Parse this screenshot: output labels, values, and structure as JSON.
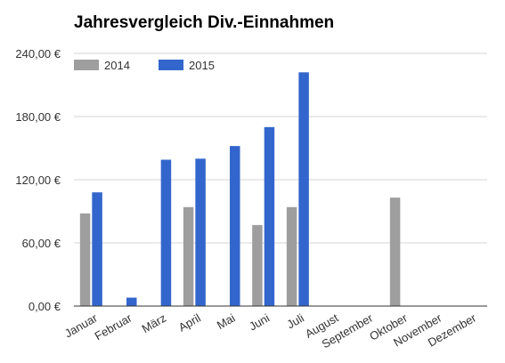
{
  "chart_data": {
    "type": "bar",
    "title": "Jahresvergleich Div.-Einnahmen",
    "xlabel": "",
    "ylabel": "",
    "ylim": [
      0,
      240
    ],
    "yticks": [
      0,
      60,
      120,
      180,
      240
    ],
    "ytick_labels": [
      "0,00 €",
      "60,00 €",
      "120,00 €",
      "180,00 €",
      "240,00 €"
    ],
    "grid": true,
    "legend_position": "top-left",
    "categories": [
      "Januar",
      "Februar",
      "März",
      "April",
      "Mai",
      "Juni",
      "Juli",
      "August",
      "September",
      "Oktober",
      "November",
      "Dezember"
    ],
    "series": [
      {
        "name": "2014",
        "color": "#9e9e9e",
        "values": [
          88,
          0,
          0,
          94,
          0,
          77,
          94,
          0,
          0,
          103,
          0,
          0
        ]
      },
      {
        "name": "2015",
        "color": "#3366cc",
        "values": [
          108,
          8,
          139,
          140,
          152,
          170,
          222,
          0,
          0,
          0,
          0,
          0
        ]
      }
    ]
  }
}
